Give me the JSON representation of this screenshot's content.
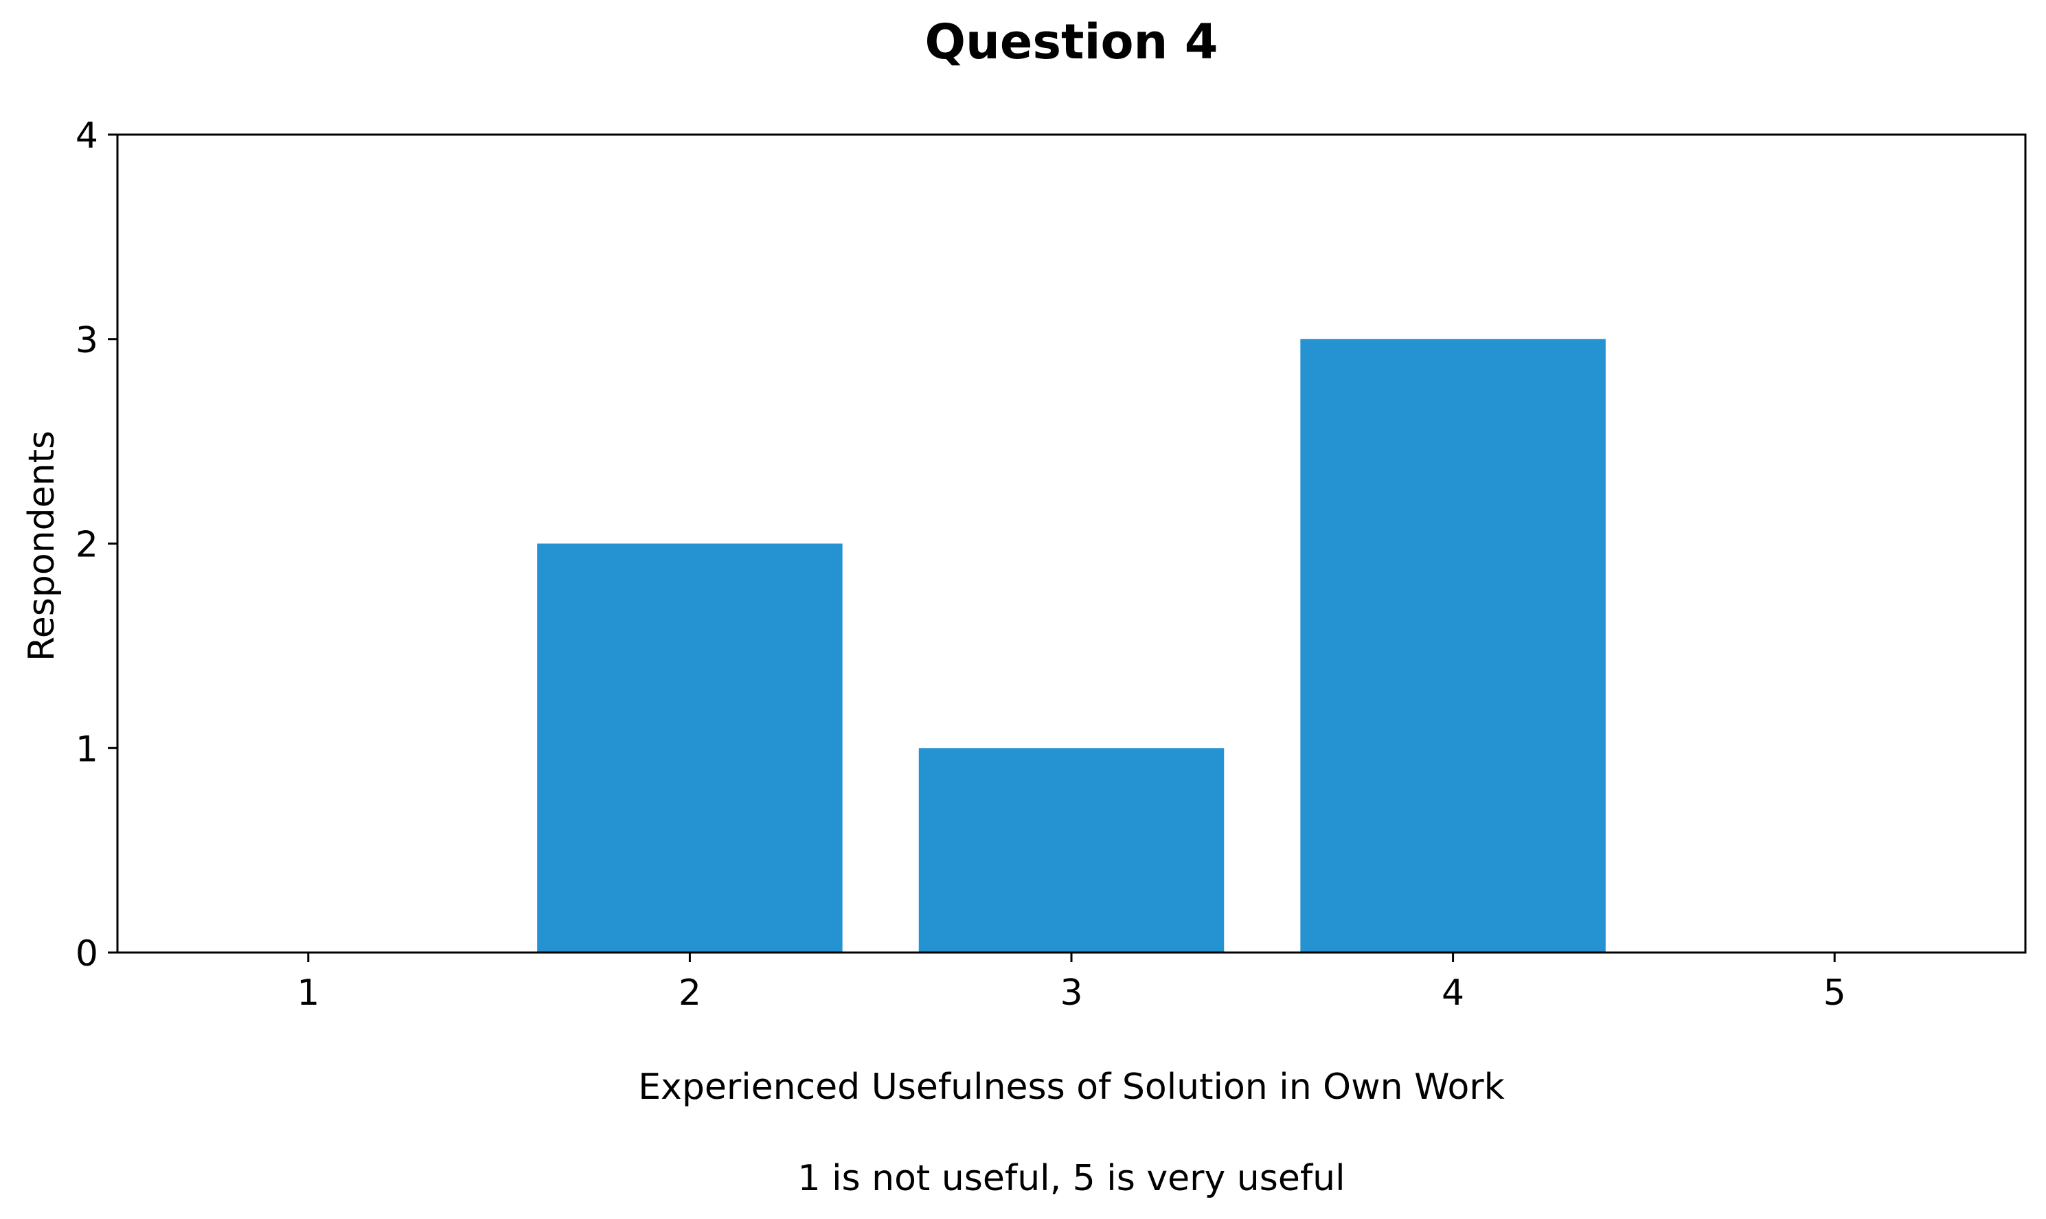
{
  "chart_data": {
    "type": "bar",
    "title": "Question 4",
    "xlabel": "Experienced Usefulness of Solution in Own Work",
    "xlabel_note": "1 is not useful, 5 is very useful",
    "ylabel": "Respondents",
    "categories": [
      "1",
      "2",
      "3",
      "4",
      "5"
    ],
    "values": [
      0,
      2,
      1,
      3,
      0
    ],
    "ylim": [
      0,
      4
    ],
    "yticks": [
      "0",
      "1",
      "2",
      "3",
      "4"
    ],
    "grid": false,
    "bar_color": "#2593d1"
  }
}
